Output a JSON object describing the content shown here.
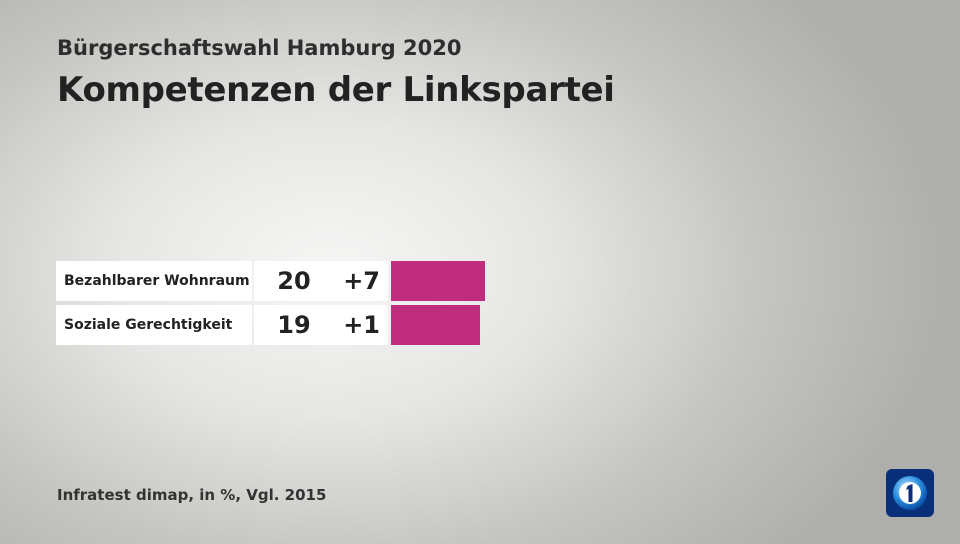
{
  "header": {
    "subtitle": "Bürgerschaftswahl Hamburg 2020",
    "title": "Kompetenzen der Linkspartei"
  },
  "chart_data": {
    "type": "bar",
    "orientation": "horizontal",
    "title": "Kompetenzen der Linkspartei",
    "subtitle": "Bürgerschaftswahl Hamburg 2020",
    "categories": [
      "Bezahlbarer Wohnraum",
      "Soziale Gerechtigkeit"
    ],
    "values": [
      20,
      19
    ],
    "diffs": [
      "+7",
      "+1"
    ],
    "unit": "%",
    "bar_color": "#bf2d7c"
  },
  "footer": {
    "source": "Infratest dimap, in %, Vgl. 2015"
  },
  "logo": {
    "icon": "ard-logo-icon",
    "color": "#0a2f7a"
  }
}
